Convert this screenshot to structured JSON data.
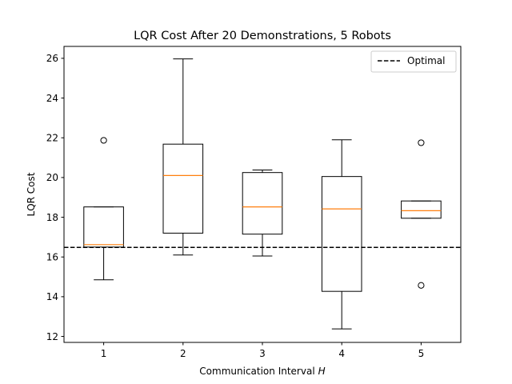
{
  "chart_data": {
    "type": "box",
    "title": "LQR Cost After 20 Demonstrations, 5 Robots",
    "xlabel": "Communication Interval",
    "xlabel_symbol": "H",
    "ylabel": "LQR Cost",
    "ylim": [
      11.7,
      26.6
    ],
    "yticks": [
      12,
      14,
      16,
      18,
      20,
      22,
      24,
      26
    ],
    "xticks": [
      1,
      2,
      3,
      4,
      5
    ],
    "categories": [
      "1",
      "2",
      "3",
      "4",
      "5"
    ],
    "boxes": [
      {
        "whisker_low": 14.85,
        "q1": 16.5,
        "median": 16.62,
        "q3": 18.52,
        "whisker_high": 18.52,
        "outliers": [
          21.87
        ]
      },
      {
        "whisker_low": 16.1,
        "q1": 17.2,
        "median": 20.1,
        "q3": 21.68,
        "whisker_high": 25.97,
        "outliers": []
      },
      {
        "whisker_low": 16.05,
        "q1": 17.15,
        "median": 18.52,
        "q3": 20.25,
        "whisker_high": 20.38,
        "outliers": []
      },
      {
        "whisker_low": 12.38,
        "q1": 14.27,
        "median": 18.42,
        "q3": 20.05,
        "whisker_high": 21.9,
        "outliers": []
      },
      {
        "whisker_low": 17.95,
        "q1": 17.95,
        "median": 18.33,
        "q3": 18.82,
        "whisker_high": 18.82,
        "outliers": [
          21.75,
          14.57
        ]
      }
    ],
    "reference_line": {
      "name": "Optimal",
      "value": 16.48,
      "style": "dashed"
    },
    "legend": {
      "position": "upper-right",
      "entries": [
        "Optimal"
      ]
    },
    "grid": false,
    "colors": {
      "box": "#000000",
      "median": "#ff7f0e",
      "reference": "#000000"
    }
  }
}
